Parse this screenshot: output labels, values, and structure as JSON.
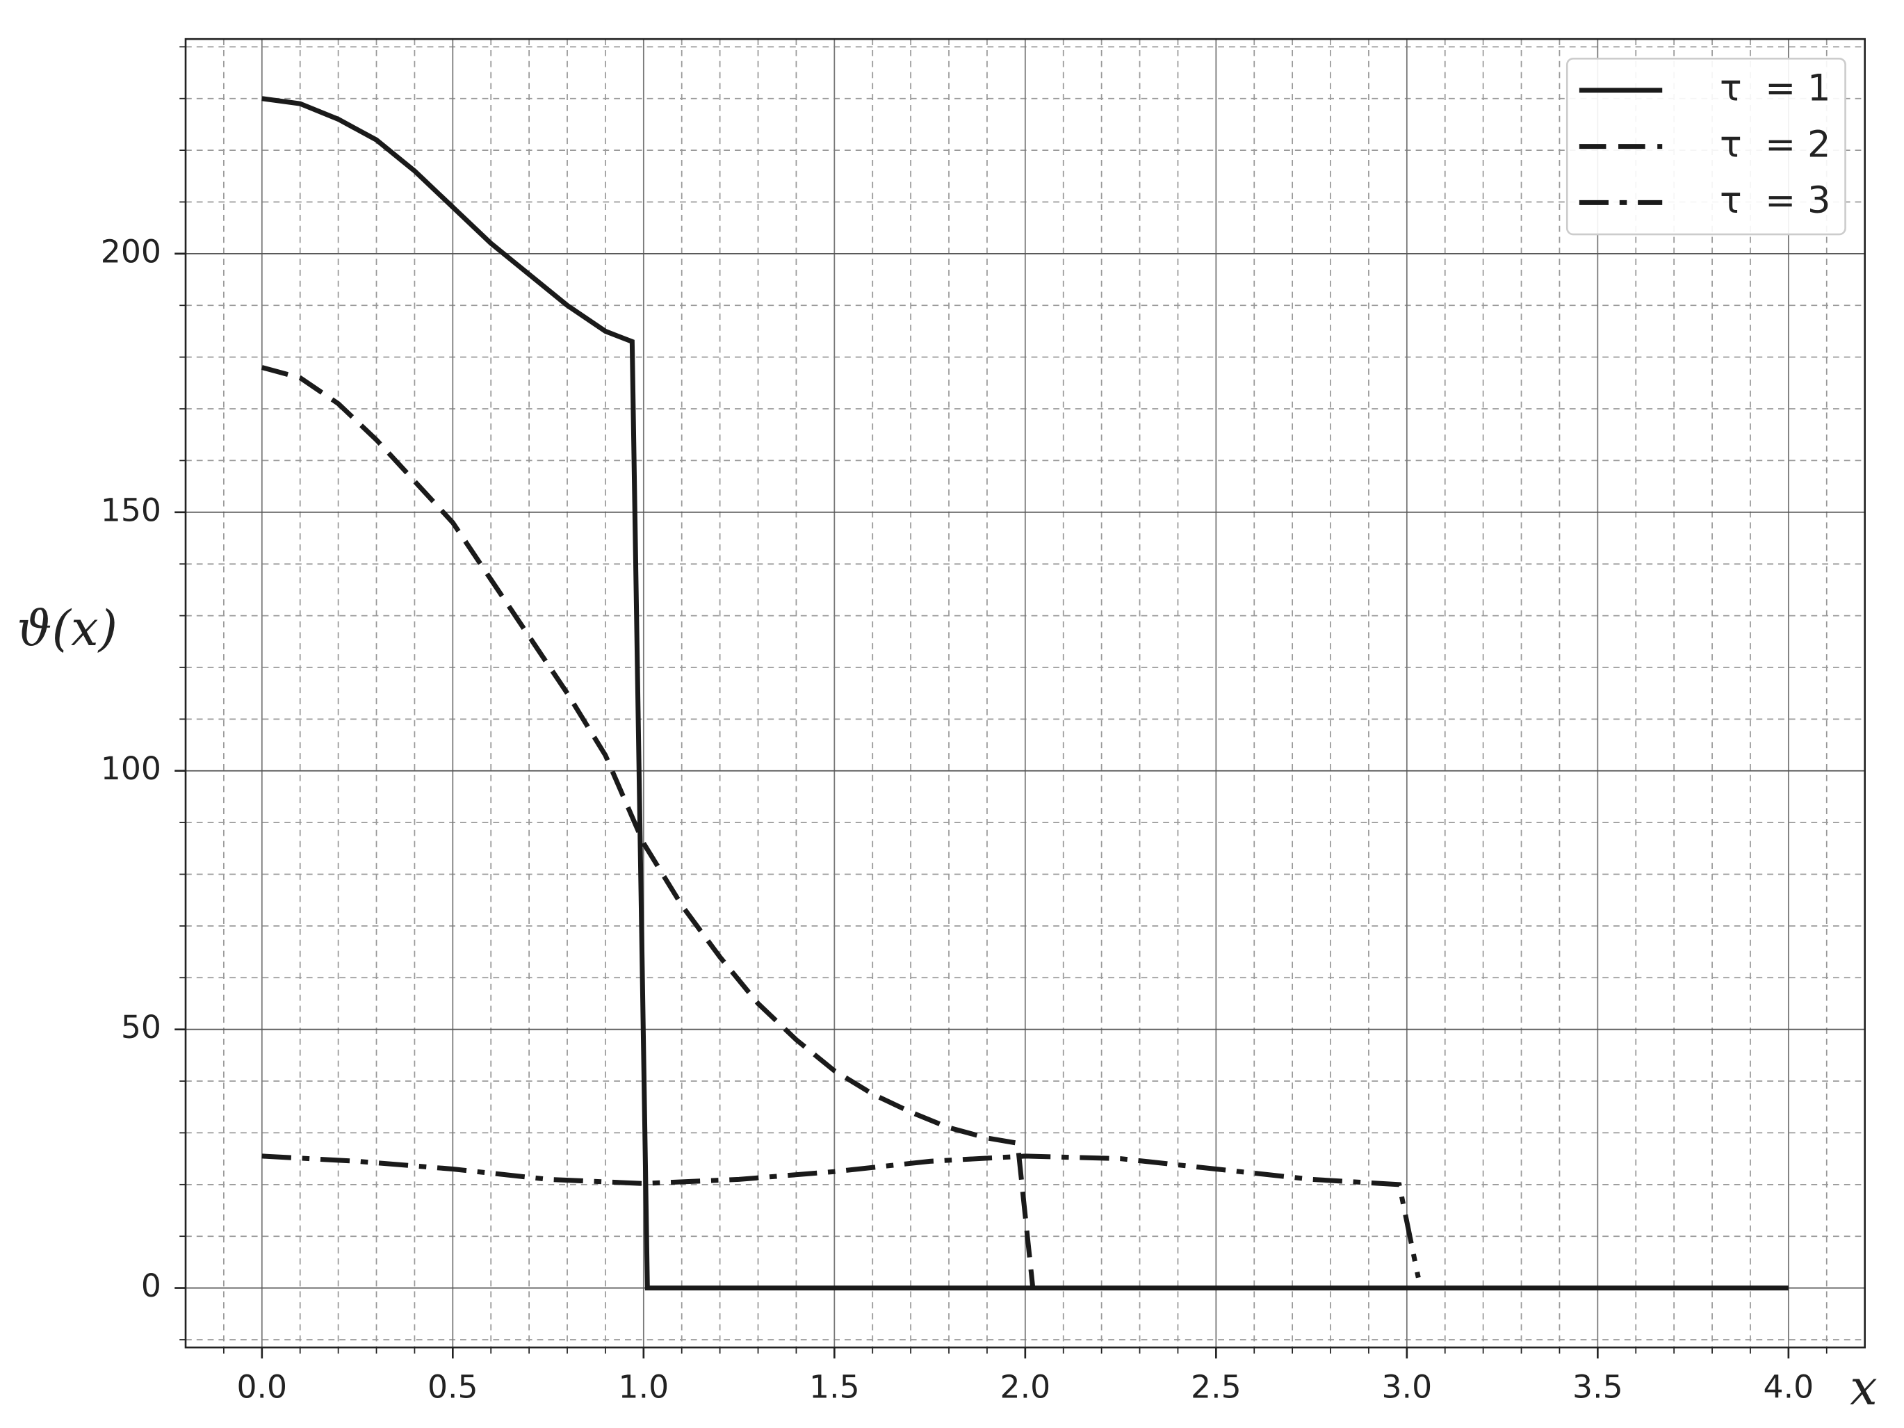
{
  "chart_data": {
    "type": "line",
    "xlabel": "x",
    "ylabel": "ϑ(x)",
    "xlim": [
      -0.2,
      4.2
    ],
    "ylim": [
      -11.5,
      241.5
    ],
    "xticks": [
      {
        "value": 0,
        "label": "0.0"
      },
      0.5,
      {
        "value": 1,
        "label": "1.0"
      },
      1.5,
      {
        "value": 2,
        "label": "2.0"
      },
      2.5,
      {
        "value": 3,
        "label": "3.0"
      },
      3.5,
      {
        "value": 4,
        "label": "4.0"
      }
    ],
    "yticks": [
      0,
      50,
      100,
      150,
      200
    ],
    "xminorticks": [
      -0.1,
      0.1,
      0.2,
      0.3,
      0.4,
      0.6,
      0.7,
      0.8,
      0.9,
      1.1,
      1.2,
      1.3,
      1.4,
      1.6,
      1.7,
      1.8,
      1.9,
      2.1,
      2.2,
      2.3,
      2.4,
      2.6,
      2.7,
      2.8,
      2.9,
      3.1,
      3.2,
      3.3,
      3.4,
      3.6,
      3.7,
      3.8,
      3.9,
      4.1
    ],
    "yminorticks": [
      -10,
      10,
      20,
      30,
      40,
      60,
      70,
      80,
      90,
      110,
      120,
      130,
      140,
      160,
      170,
      180,
      190,
      210,
      220,
      230,
      240
    ],
    "grid": true,
    "legend": "upper right",
    "series": [
      {
        "name": "τ  = 1",
        "color": "#1a1a1a",
        "linestyle": "solid",
        "x": [
          0,
          0.1,
          0.2,
          0.3,
          0.4,
          0.5,
          0.6,
          0.7,
          0.8,
          0.9,
          0.97,
          1.01,
          4.0
        ],
        "values": [
          230,
          229,
          226,
          222,
          216,
          209,
          202,
          196,
          190,
          185,
          183,
          0,
          0
        ]
      },
      {
        "name": "τ  = 2",
        "color": "#1a1a1a",
        "linestyle": "dashed",
        "x": [
          0,
          0.1,
          0.2,
          0.3,
          0.4,
          0.5,
          0.6,
          0.7,
          0.8,
          0.9,
          1.0,
          1.1,
          1.2,
          1.3,
          1.4,
          1.5,
          1.6,
          1.7,
          1.8,
          1.9,
          1.98,
          2.02
        ],
        "values": [
          178,
          176,
          171,
          164,
          156,
          148,
          137,
          126,
          115,
          103,
          86,
          74,
          64,
          55,
          48,
          42,
          37.5,
          34,
          31,
          29,
          28,
          0
        ]
      },
      {
        "name": "τ  = 3",
        "color": "#1a1a1a",
        "linestyle": "dashdot",
        "x": [
          0,
          0.25,
          0.5,
          0.75,
          1.0,
          1.25,
          1.5,
          1.75,
          2.0,
          2.25,
          2.5,
          2.75,
          2.98,
          3.03
        ],
        "values": [
          25.5,
          24.5,
          23,
          21,
          20.2,
          21,
          22.5,
          24.5,
          25.5,
          25,
          23,
          21,
          20,
          2
        ]
      }
    ]
  }
}
